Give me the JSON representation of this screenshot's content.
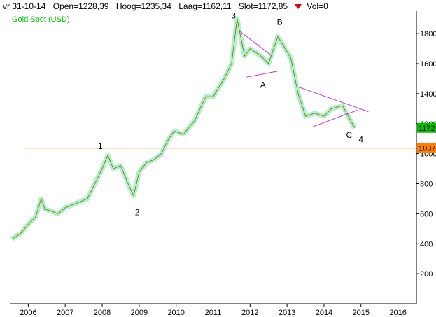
{
  "header": {
    "date": "vr 31-10-14",
    "open": "Open=1228,39",
    "high": "Hoog=1235,34",
    "low": "Laag=1162,11",
    "close": "Slot=1172,85",
    "vol": "Vol=0",
    "vol_icon": "down-triangle-icon"
  },
  "chart_data": {
    "type": "line",
    "title": "Gold Spot (USD)",
    "xlabel": "",
    "ylabel": "",
    "xlim": [
      2005.5,
      2016.5
    ],
    "ylim": [
      0,
      1950
    ],
    "x_ticks": [
      "2006",
      "2007",
      "2008",
      "2009",
      "2010",
      "2011",
      "2012",
      "2013",
      "2014",
      "2015",
      "2016"
    ],
    "y_ticks": [
      200,
      400,
      600,
      800,
      1000,
      1200,
      1400,
      1600,
      1800
    ],
    "grid": false,
    "series": [
      {
        "name": "Gold Spot (USD)",
        "color": "#aaf0dc",
        "x": [
          2005.55,
          2005.8,
          2006.0,
          2006.2,
          2006.35,
          2006.45,
          2006.6,
          2006.8,
          2007.0,
          2007.2,
          2007.4,
          2007.6,
          2007.8,
          2008.0,
          2008.15,
          2008.3,
          2008.5,
          2008.7,
          2008.85,
          2009.0,
          2009.2,
          2009.4,
          2009.6,
          2009.8,
          2009.95,
          2010.2,
          2010.5,
          2010.8,
          2011.0,
          2011.3,
          2011.5,
          2011.65,
          2011.85,
          2012.0,
          2012.3,
          2012.5,
          2012.75,
          2012.9,
          2013.1,
          2013.3,
          2013.5,
          2013.75,
          2014.0,
          2014.2,
          2014.5,
          2014.7,
          2014.83
        ],
        "y": [
          430,
          470,
          530,
          580,
          700,
          630,
          620,
          600,
          640,
          660,
          680,
          700,
          800,
          900,
          990,
          900,
          920,
          800,
          720,
          880,
          940,
          960,
          1000,
          1100,
          1150,
          1130,
          1220,
          1380,
          1380,
          1500,
          1600,
          1900,
          1650,
          1700,
          1650,
          1600,
          1780,
          1720,
          1640,
          1400,
          1250,
          1270,
          1250,
          1300,
          1320,
          1230,
          1172
        ]
      }
    ],
    "horizontal_line": {
      "value": 1037,
      "color": "#ff8000"
    },
    "price_labels": [
      {
        "value": 1172,
        "text": "1172",
        "color": "#00c000"
      },
      {
        "value": 1037,
        "text": "1037",
        "color": "#ff8000"
      }
    ],
    "trendlines": [
      {
        "color": "#cc33cc",
        "x": [
          2011.7,
          2012.6
        ],
        "y": [
          1820,
          1650
        ]
      },
      {
        "color": "#cc33cc",
        "x": [
          2011.9,
          2012.75
        ],
        "y": [
          1510,
          1550
        ]
      },
      {
        "color": "#cc33cc",
        "x": [
          2013.3,
          2015.2
        ],
        "y": [
          1445,
          1280
        ]
      },
      {
        "color": "#cc33cc",
        "x": [
          2013.7,
          2014.9
        ],
        "y": [
          1180,
          1290
        ]
      }
    ],
    "annotations": [
      {
        "text": "1",
        "x": 2007.95,
        "y": 1030
      },
      {
        "text": "2",
        "x": 2008.95,
        "y": 590
      },
      {
        "text": "3",
        "x": 2011.55,
        "y": 1900
      },
      {
        "text": "A",
        "x": 2012.35,
        "y": 1440
      },
      {
        "text": "B",
        "x": 2012.8,
        "y": 1860
      },
      {
        "text": "C",
        "x": 2014.68,
        "y": 1105
      },
      {
        "text": "4",
        "x": 2015.0,
        "y": 1075
      }
    ]
  }
}
